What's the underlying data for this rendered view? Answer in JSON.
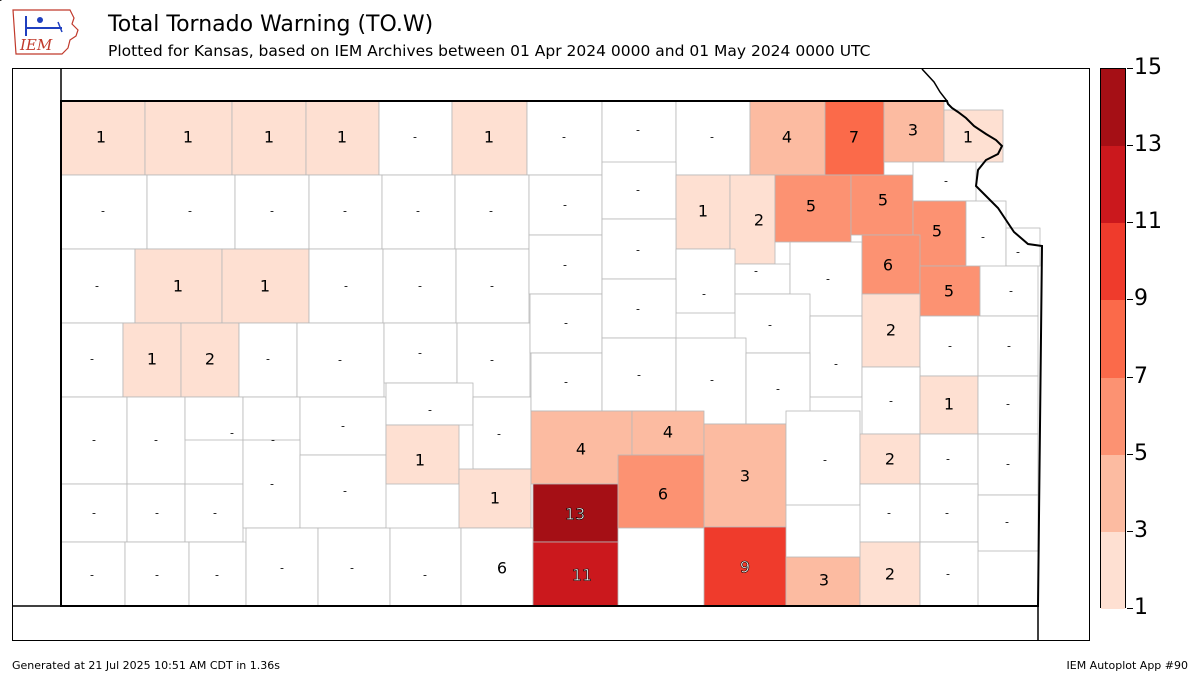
{
  "header": {
    "logo_text": "IEM",
    "title": "Total Tornado Warning (TO.W)",
    "subtitle": "Plotted for Kansas, based on IEM Archives  between 01 Apr 2024 0000 and 01 May 2024 0000 UTC"
  },
  "colors": {
    "missing": "#ffffff",
    "bins": [
      "#fee0d2",
      "#fcbba1",
      "#fc9272",
      "#fb6a4a",
      "#ef3b2c",
      "#cb181d",
      "#a50f15"
    ],
    "border": "#000000",
    "county_line": "#b8b8b8"
  },
  "legend": {
    "ticks": [
      "1",
      "3",
      "5",
      "7",
      "9",
      "11",
      "13",
      "15"
    ],
    "min": 1,
    "max": 15
  },
  "map": {
    "state": "Kansas",
    "county_counts": [
      {
        "name": "Cheyenne",
        "value": "1"
      },
      {
        "name": "Rawlins",
        "value": "1"
      },
      {
        "name": "Decatur",
        "value": "1"
      },
      {
        "name": "Norton",
        "value": "1"
      },
      {
        "name": "Phillips",
        "value": "-"
      },
      {
        "name": "Smith",
        "value": "1"
      },
      {
        "name": "Jewell",
        "value": "-"
      },
      {
        "name": "Republic",
        "value": "-"
      },
      {
        "name": "Washington",
        "value": "-"
      },
      {
        "name": "Marshall",
        "value": "4"
      },
      {
        "name": "Nemaha",
        "value": "7"
      },
      {
        "name": "Brown",
        "value": "3"
      },
      {
        "name": "Doniphan",
        "value": "1"
      },
      {
        "name": "Sherman",
        "value": "-"
      },
      {
        "name": "Thomas",
        "value": "-"
      },
      {
        "name": "Sheridan",
        "value": "-"
      },
      {
        "name": "Graham",
        "value": "-"
      },
      {
        "name": "Rooks",
        "value": "-"
      },
      {
        "name": "Osborne",
        "value": "-"
      },
      {
        "name": "Mitchell",
        "value": "-"
      },
      {
        "name": "Cloud",
        "value": "-"
      },
      {
        "name": "Clay",
        "value": "1"
      },
      {
        "name": "Riley",
        "value": "2"
      },
      {
        "name": "Pottawatomie",
        "value": "5"
      },
      {
        "name": "Jackson",
        "value": "5"
      },
      {
        "name": "Atchison",
        "value": "-"
      },
      {
        "name": "Jefferson",
        "value": "5"
      },
      {
        "name": "Leavenworth",
        "value": "-"
      },
      {
        "name": "Wyandotte",
        "value": "-"
      },
      {
        "name": "Wallace",
        "value": "-"
      },
      {
        "name": "Logan",
        "value": "1"
      },
      {
        "name": "Gove",
        "value": "1"
      },
      {
        "name": "Trego",
        "value": "-"
      },
      {
        "name": "Ellis",
        "value": "-"
      },
      {
        "name": "Russell",
        "value": "-"
      },
      {
        "name": "Lincoln",
        "value": "-"
      },
      {
        "name": "Ottawa",
        "value": "-"
      },
      {
        "name": "Dickinson",
        "value": "-"
      },
      {
        "name": "Geary",
        "value": "-"
      },
      {
        "name": "Wabaunsee",
        "value": "-"
      },
      {
        "name": "Shawnee",
        "value": "6"
      },
      {
        "name": "Douglas",
        "value": "5"
      },
      {
        "name": "Johnson",
        "value": "-"
      },
      {
        "name": "Greeley",
        "value": "-"
      },
      {
        "name": "Wichita",
        "value": "1"
      },
      {
        "name": "Scott",
        "value": "2"
      },
      {
        "name": "Lane",
        "value": "-"
      },
      {
        "name": "Ness",
        "value": "-"
      },
      {
        "name": "Rush",
        "value": "-"
      },
      {
        "name": "Barton",
        "value": "-"
      },
      {
        "name": "Ellsworth",
        "value": "-"
      },
      {
        "name": "Saline",
        "value": "-"
      },
      {
        "name": "Morris",
        "value": "-"
      },
      {
        "name": "Lyon",
        "value": "-"
      },
      {
        "name": "Osage",
        "value": "2"
      },
      {
        "name": "Franklin",
        "value": "-"
      },
      {
        "name": "Miami",
        "value": "-"
      },
      {
        "name": "Hamilton",
        "value": "-"
      },
      {
        "name": "Kearny",
        "value": "-"
      },
      {
        "name": "Finney",
        "value": "-"
      },
      {
        "name": "Hodgeman",
        "value": "-"
      },
      {
        "name": "Pawnee",
        "value": "-"
      },
      {
        "name": "Stafford",
        "value": "-"
      },
      {
        "name": "Rice",
        "value": "-"
      },
      {
        "name": "McPherson",
        "value": "-"
      },
      {
        "name": "Marion",
        "value": "-"
      },
      {
        "name": "Chase",
        "value": "-"
      },
      {
        "name": "Coffey",
        "value": "-"
      },
      {
        "name": "Anderson",
        "value": "-"
      },
      {
        "name": "Linn",
        "value": "1"
      },
      {
        "name": "Gray",
        "value": "-"
      },
      {
        "name": "Ford",
        "value": "-"
      },
      {
        "name": "Edwards",
        "value": "-"
      },
      {
        "name": "Kiowa",
        "value": "-"
      },
      {
        "name": "Pratt",
        "value": "-"
      },
      {
        "name": "Reno",
        "value": "-"
      },
      {
        "name": "Harvey",
        "value": "1"
      },
      {
        "name": "Sedgwick",
        "value": "1"
      },
      {
        "name": "Butler",
        "value": "4"
      },
      {
        "name": "Greenwood",
        "value": "4"
      },
      {
        "name": "Woodson",
        "value": "3"
      },
      {
        "name": "Allen",
        "value": "-"
      },
      {
        "name": "Bourbon",
        "value": "2"
      },
      {
        "name": "Stanton",
        "value": "-"
      },
      {
        "name": "Grant",
        "value": "-"
      },
      {
        "name": "Haskell",
        "value": "-"
      },
      {
        "name": "Clark",
        "value": "-"
      },
      {
        "name": "Comanche",
        "value": "-"
      },
      {
        "name": "Barber",
        "value": "-"
      },
      {
        "name": "Kingman",
        "value": "-"
      },
      {
        "name": "Harper",
        "value": "-"
      },
      {
        "name": "Cowley",
        "value": "6"
      },
      {
        "name": "Elk",
        "value": "13"
      },
      {
        "name": "Wilson",
        "value": "6"
      },
      {
        "name": "Neosho",
        "value": "-"
      },
      {
        "name": "Crawford",
        "value": "-"
      },
      {
        "name": "Morton",
        "value": "-"
      },
      {
        "name": "Stevens",
        "value": "-"
      },
      {
        "name": "Seward",
        "value": "-"
      },
      {
        "name": "Meade",
        "value": "-"
      },
      {
        "name": "Sumner",
        "value": "11"
      },
      {
        "name": "Chautauqua",
        "value": "9"
      },
      {
        "name": "Montgomery",
        "value": "3"
      },
      {
        "name": "Labette",
        "value": "2"
      },
      {
        "name": "Cherokee",
        "value": "-"
      }
    ]
  },
  "footer": {
    "generated": "Generated at 21 Jul 2025 10:51 AM CDT in 1.36s",
    "app": "IEM Autoplot App #90"
  }
}
